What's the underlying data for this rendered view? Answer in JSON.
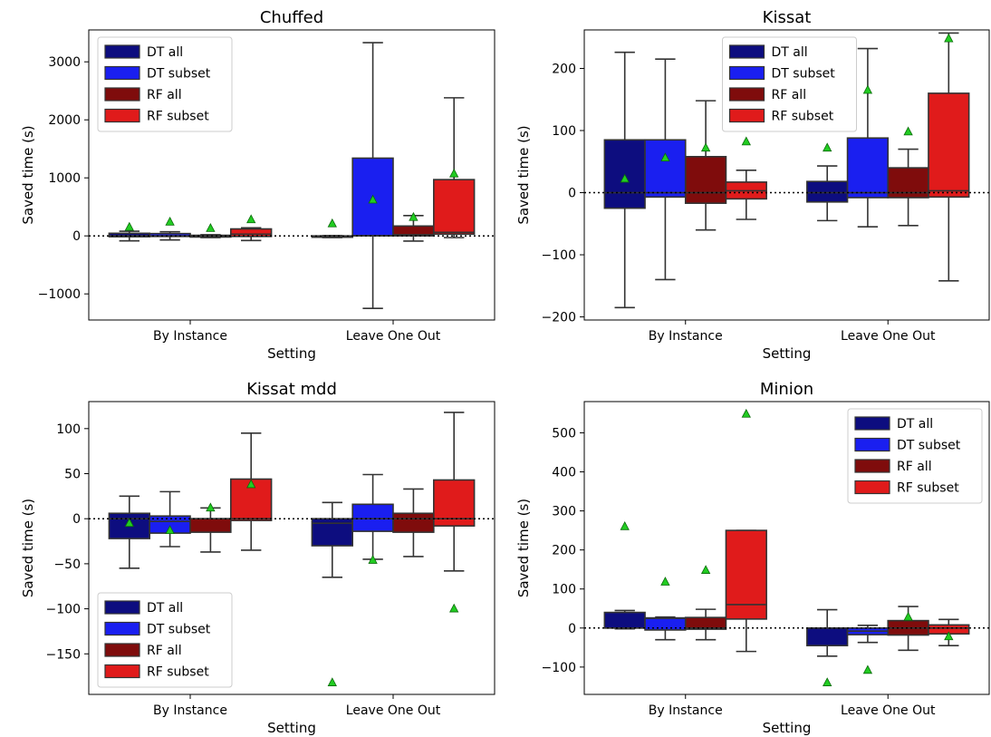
{
  "figure": {
    "series_colors": {
      "DT all": "#0d0d7f",
      "DT subset": "#1a1ff0",
      "RF all": "#7f0c0c",
      "RF subset": "#e01b1b"
    },
    "mean_marker_color": "#22cc22"
  },
  "chart_data": [
    {
      "type": "box",
      "title": "Chuffed",
      "xlabel": "Setting",
      "ylabel": "Saved time (s)",
      "categories": [
        "By Instance",
        "Leave One Out"
      ],
      "ylim": [
        -1450,
        3550
      ],
      "yticks": [
        -1000,
        0,
        1000,
        2000,
        3000
      ],
      "legend": {
        "placement": "upper-left",
        "entries": [
          "DT all",
          "DT subset",
          "RF all",
          "RF subset"
        ]
      },
      "series": [
        {
          "name": "DT all",
          "boxes": [
            {
              "whislo": -85,
              "q1": -15,
              "median": 0,
              "q3": 45,
              "whishi": 80,
              "mean": 150
            },
            {
              "whislo": -30,
              "q1": -20,
              "median": -5,
              "q3": 0,
              "whishi": 5,
              "mean": 210
            }
          ]
        },
        {
          "name": "DT subset",
          "boxes": [
            {
              "whislo": -70,
              "q1": -10,
              "median": 0,
              "q3": 40,
              "whishi": 70,
              "mean": 240
            },
            {
              "whislo": -1250,
              "q1": 0,
              "median": 5,
              "q3": 1340,
              "whishi": 3330,
              "mean": 620
            }
          ]
        },
        {
          "name": "RF all",
          "boxes": [
            {
              "whislo": -30,
              "q1": -20,
              "median": -5,
              "q3": 10,
              "whishi": 20,
              "mean": 130
            },
            {
              "whislo": -90,
              "q1": 0,
              "median": 20,
              "q3": 170,
              "whishi": 350,
              "mean": 320
            }
          ]
        },
        {
          "name": "RF subset",
          "boxes": [
            {
              "whislo": -80,
              "q1": -10,
              "median": 30,
              "q3": 120,
              "whishi": 140,
              "mean": 280
            },
            {
              "whislo": -30,
              "q1": 30,
              "median": 60,
              "q3": 970,
              "whishi": 2380,
              "mean": 1070
            }
          ]
        }
      ]
    },
    {
      "type": "box",
      "title": "Kissat",
      "xlabel": "Setting",
      "ylabel": "Saved time (s)",
      "categories": [
        "By Instance",
        "Leave One Out"
      ],
      "ylim": [
        -205,
        262
      ],
      "yticks": [
        -200,
        -100,
        0,
        100,
        200
      ],
      "legend": {
        "placement": "upper-center",
        "entries": [
          "DT all",
          "DT subset",
          "RF all",
          "RF subset"
        ]
      },
      "series": [
        {
          "name": "DT all",
          "boxes": [
            {
              "whislo": -185,
              "q1": -25,
              "median": 0,
              "q3": 85,
              "whishi": 226,
              "mean": 22
            },
            {
              "whislo": -45,
              "q1": -15,
              "median": 0,
              "q3": 18,
              "whishi": 43,
              "mean": 72
            }
          ]
        },
        {
          "name": "DT subset",
          "boxes": [
            {
              "whislo": -140,
              "q1": -7,
              "median": 0,
              "q3": 85,
              "whishi": 215,
              "mean": 56
            },
            {
              "whislo": -55,
              "q1": -8,
              "median": 0,
              "q3": 88,
              "whishi": 232,
              "mean": 165
            }
          ]
        },
        {
          "name": "RF all",
          "boxes": [
            {
              "whislo": -60,
              "q1": -17,
              "median": 0,
              "q3": 58,
              "whishi": 148,
              "mean": 72
            },
            {
              "whislo": -53,
              "q1": -8,
              "median": 0,
              "q3": 40,
              "whishi": 70,
              "mean": 98
            }
          ]
        },
        {
          "name": "RF subset",
          "boxes": [
            {
              "whislo": -43,
              "q1": -10,
              "median": 3,
              "q3": 17,
              "whishi": 36,
              "mean": 82
            },
            {
              "whislo": -142,
              "q1": -7,
              "median": 3,
              "q3": 160,
              "whishi": 257,
              "mean": 248
            }
          ]
        }
      ]
    },
    {
      "type": "box",
      "title": "Kissat mdd",
      "xlabel": "Setting",
      "ylabel": "Saved time (s)",
      "categories": [
        "By Instance",
        "Leave One Out"
      ],
      "ylim": [
        -195,
        130
      ],
      "yticks": [
        -150,
        -100,
        -50,
        0,
        50,
        100
      ],
      "legend": {
        "placement": "lower-left",
        "entries": [
          "DT all",
          "DT subset",
          "RF all",
          "RF subset"
        ]
      },
      "series": [
        {
          "name": "DT all",
          "boxes": [
            {
              "whislo": -55,
              "q1": -22,
              "median": 0,
              "q3": 6,
              "whishi": 25,
              "mean": -5
            },
            {
              "whislo": -65,
              "q1": -30,
              "median": -5,
              "q3": 0,
              "whishi": 18,
              "mean": -182
            }
          ]
        },
        {
          "name": "DT subset",
          "boxes": [
            {
              "whislo": -31,
              "q1": -16,
              "median": -3,
              "q3": 3,
              "whishi": 30,
              "mean": -13
            },
            {
              "whislo": -45,
              "q1": -14,
              "median": 0,
              "q3": 16,
              "whishi": 49,
              "mean": -46
            }
          ]
        },
        {
          "name": "RF all",
          "boxes": [
            {
              "whislo": -37,
              "q1": -15,
              "median": 0,
              "q3": 0,
              "whishi": 12,
              "mean": 12
            },
            {
              "whislo": -42,
              "q1": -15,
              "median": 0,
              "q3": 6,
              "whishi": 33,
              "mean": null
            }
          ]
        },
        {
          "name": "RF subset",
          "boxes": [
            {
              "whislo": -35,
              "q1": -2,
              "median": 0,
              "q3": 44,
              "whishi": 95,
              "mean": 38
            },
            {
              "whislo": -58,
              "q1": -8,
              "median": 0,
              "q3": 43,
              "whishi": 118,
              "mean": -100
            }
          ]
        }
      ]
    },
    {
      "type": "box",
      "title": "Minion",
      "xlabel": "Setting",
      "ylabel": "Saved time (s)",
      "categories": [
        "By Instance",
        "Leave One Out"
      ],
      "ylim": [
        -170,
        580
      ],
      "yticks": [
        -100,
        0,
        100,
        200,
        300,
        400,
        500
      ],
      "legend": {
        "placement": "upper-right",
        "entries": [
          "DT all",
          "DT subset",
          "RF all",
          "RF subset"
        ]
      },
      "series": [
        {
          "name": "DT all",
          "boxes": [
            {
              "whislo": -2,
              "q1": 0,
              "median": 0,
              "q3": 40,
              "whishi": 45,
              "mean": 260
            },
            {
              "whislo": -72,
              "q1": -45,
              "median": 0,
              "q3": 0,
              "whishi": 47,
              "mean": -140
            }
          ]
        },
        {
          "name": "DT subset",
          "boxes": [
            {
              "whislo": -30,
              "q1": -5,
              "median": 25,
              "q3": 26,
              "whishi": 28,
              "mean": 118
            },
            {
              "whislo": -37,
              "q1": -17,
              "median": -8,
              "q3": 0,
              "whishi": 7,
              "mean": -108
            }
          ]
        },
        {
          "name": "RF all",
          "boxes": [
            {
              "whislo": -30,
              "q1": -3,
              "median": 0,
              "q3": 27,
              "whishi": 48,
              "mean": 148
            },
            {
              "whislo": -57,
              "q1": -18,
              "median": 0,
              "q3": 19,
              "whishi": 55,
              "mean": 28
            }
          ]
        },
        {
          "name": "RF subset",
          "boxes": [
            {
              "whislo": -60,
              "q1": 23,
              "median": 60,
              "q3": 250,
              "whishi": 250,
              "mean": 548
            },
            {
              "whislo": -45,
              "q1": -15,
              "median": 0,
              "q3": 8,
              "whishi": 22,
              "mean": -22
            }
          ]
        }
      ]
    }
  ]
}
